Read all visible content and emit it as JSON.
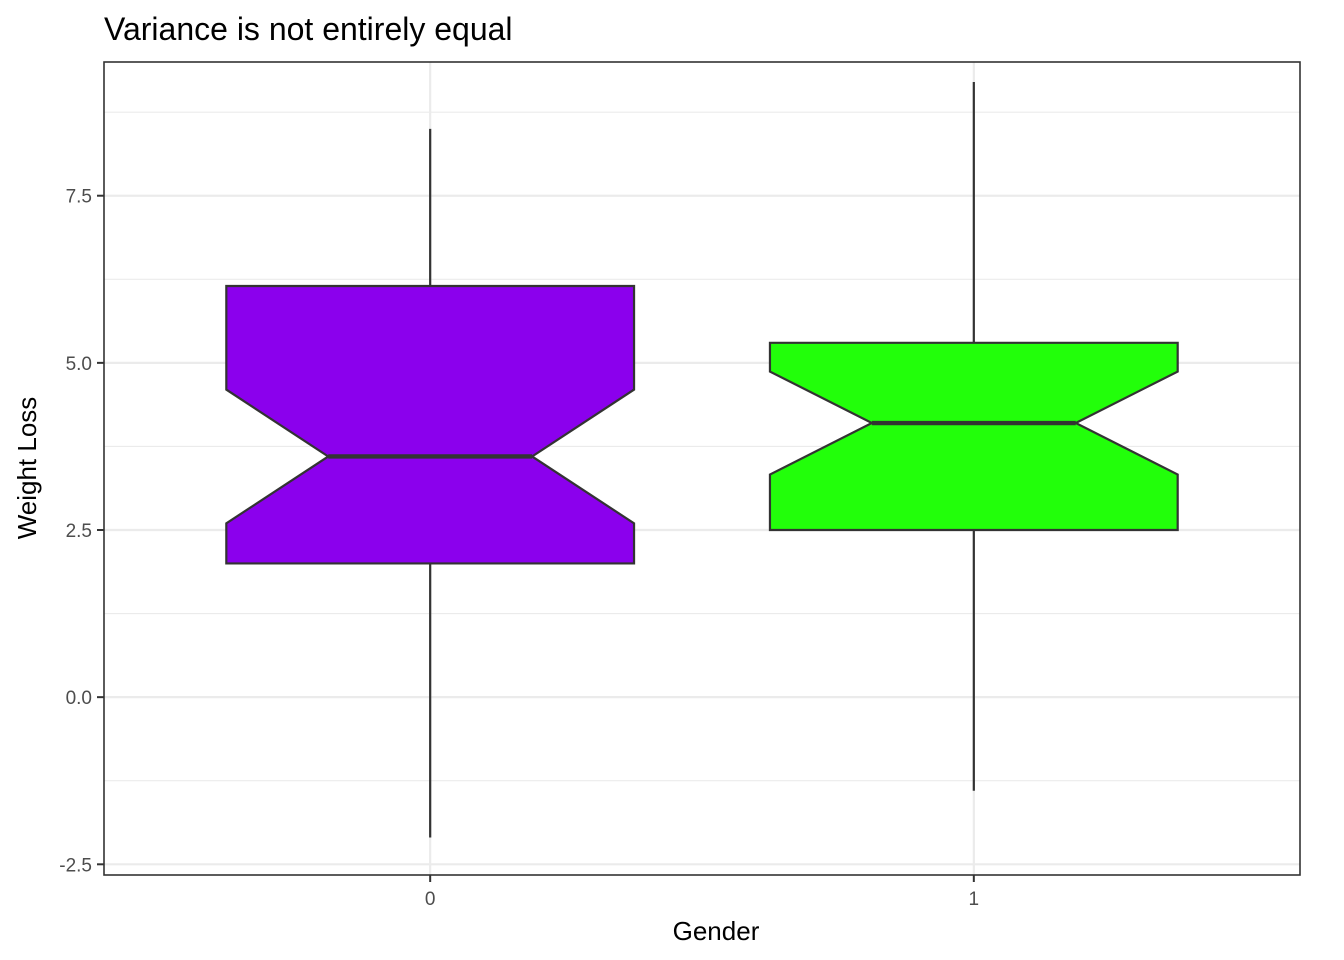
{
  "chart_data": {
    "type": "boxplot",
    "title": "Variance is not entirely equal",
    "xlabel": "Gender",
    "ylabel": "Weight Loss",
    "categories": [
      "0",
      "1"
    ],
    "ylim": [
      -2.66,
      9.5
    ],
    "y_ticks": [
      -2.5,
      0.0,
      2.5,
      5.0,
      7.5
    ],
    "y_tick_labels": [
      "-2.5",
      "0.0",
      "2.5",
      "5.0",
      "7.5"
    ],
    "grid": true,
    "notched": true,
    "legend": "none",
    "boxes": [
      {
        "category": "0",
        "min": -2.1,
        "q1": 2.0,
        "median": 3.6,
        "q3": 6.15,
        "max": 8.5,
        "notch_low": 2.6,
        "notch_high": 4.6,
        "fill": "#8b00ed"
      },
      {
        "category": "1",
        "min": -1.4,
        "q1": 2.5,
        "median": 4.1,
        "q3": 5.3,
        "max": 9.2,
        "notch_low": 3.33,
        "notch_high": 4.87,
        "fill": "#22ff0a"
      }
    ]
  }
}
